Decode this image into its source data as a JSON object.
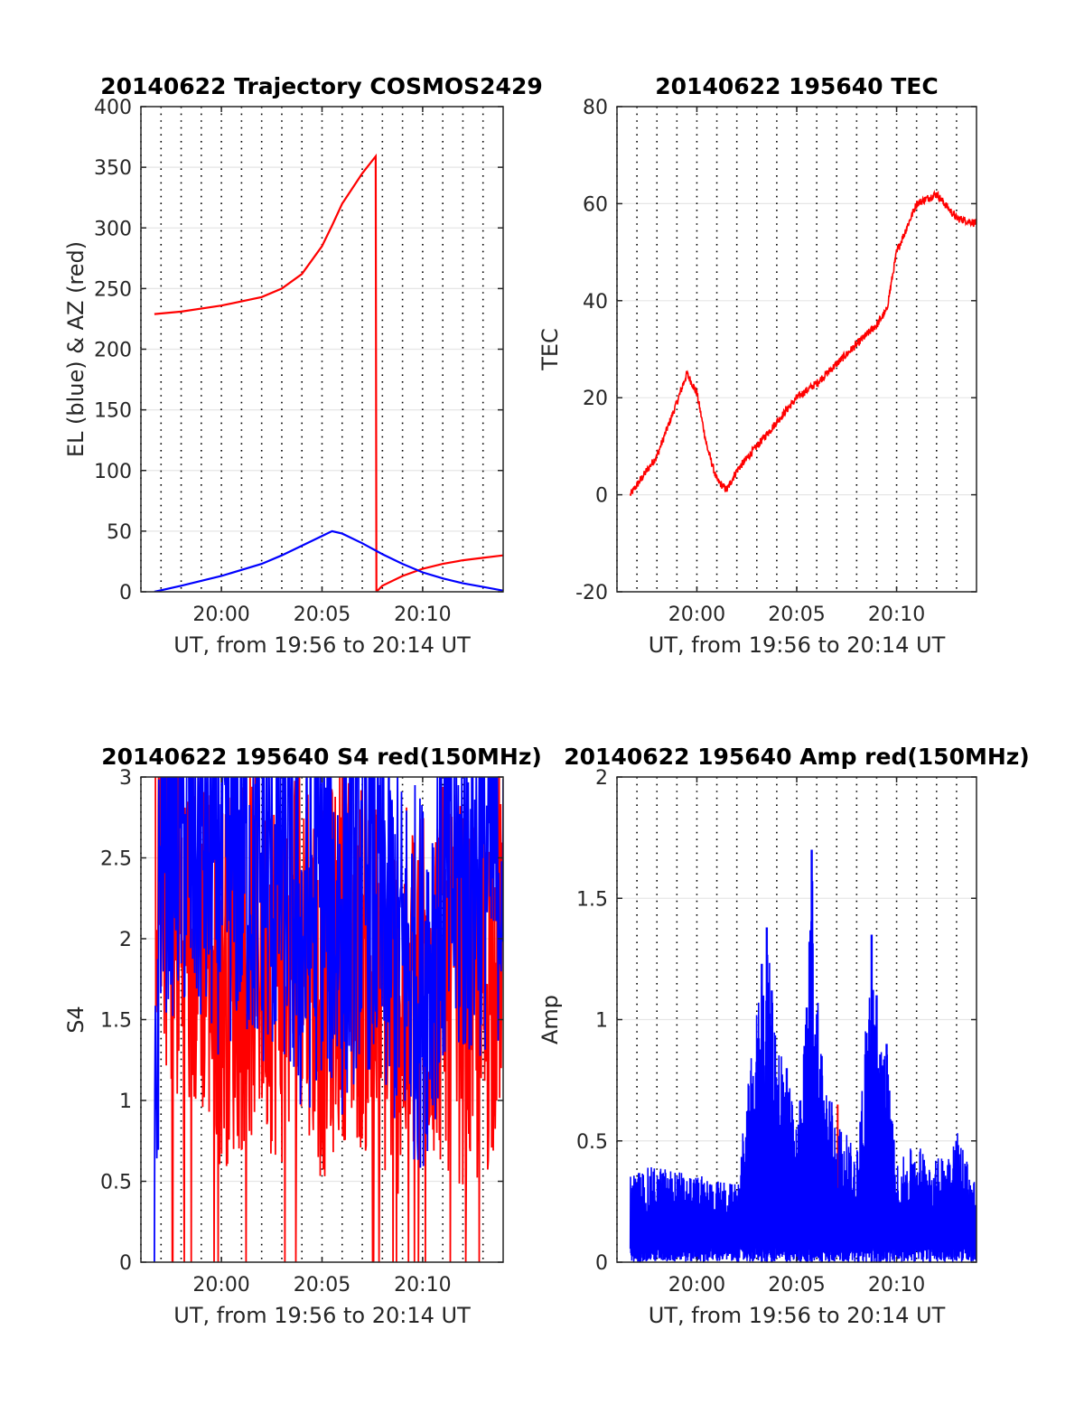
{
  "chart_data": [
    {
      "type": "line",
      "title": "20140622 Trajectory COSMOS2429",
      "xlabel": "UT, from 19:56 to 20:14 UT",
      "ylabel": "EL (blue) & AZ (red)",
      "x_unit": "minutes",
      "xlim": [
        "19:56",
        "20:14"
      ],
      "ylim": [
        0,
        400
      ],
      "yticks": [
        0,
        50,
        100,
        150,
        200,
        250,
        300,
        350,
        400
      ],
      "xticks": [
        "20:00",
        "20:05",
        "20:10"
      ],
      "grid": "x dotted every minute, y solid",
      "series": [
        {
          "color": "#ff0000",
          "x": [
            "19:56:40",
            "19:58",
            "20:00",
            "20:02",
            "20:03",
            "20:04",
            "20:05",
            "20:05:30",
            "20:06",
            "20:07",
            "20:07:40",
            "20:07:42",
            "20:08",
            "20:09",
            "20:10",
            "20:11",
            "20:12",
            "20:13",
            "20:14"
          ],
          "y": [
            229,
            231,
            236,
            243,
            250,
            262,
            285,
            302,
            320,
            345,
            359,
            0,
            5,
            13,
            19,
            23,
            26,
            28,
            30
          ]
        },
        {
          "color": "#0000ff",
          "x": [
            "19:56:40",
            "19:58",
            "20:00",
            "20:02",
            "20:03",
            "20:04",
            "20:05",
            "20:05:30",
            "20:06",
            "20:07",
            "20:08",
            "20:09",
            "20:10",
            "20:11",
            "20:12",
            "20:13",
            "20:14"
          ],
          "y": [
            0,
            5,
            13,
            23,
            30,
            38,
            46,
            50,
            48,
            40,
            31,
            23,
            16,
            11,
            7,
            4,
            1
          ]
        }
      ]
    },
    {
      "type": "line",
      "title": "20140622 195640 TEC",
      "xlabel": "UT, from 19:56 to 20:14 UT",
      "ylabel": "TEC",
      "x_unit": "minutes",
      "xlim": [
        "19:56",
        "20:14"
      ],
      "ylim": [
        -20,
        80
      ],
      "yticks": [
        -20,
        0,
        20,
        40,
        60,
        80
      ],
      "xticks": [
        "20:00",
        "20:05",
        "20:10"
      ],
      "grid": "x dotted every minute, y solid",
      "series": [
        {
          "color": "#ff0000",
          "x": [
            "19:56:40",
            "19:57",
            "19:58",
            "19:59",
            "19:59:30",
            "20:00",
            "20:00:30",
            "20:01",
            "20:01:30",
            "20:02",
            "20:03",
            "20:04",
            "20:05",
            "20:06",
            "20:07",
            "20:08",
            "20:09",
            "20:09:30",
            "20:10",
            "20:11",
            "20:12",
            "20:13",
            "20:14"
          ],
          "y": [
            0,
            2,
            8,
            19,
            25,
            21,
            10,
            3,
            1,
            5,
            10,
            15,
            20,
            23,
            27,
            31,
            35,
            38,
            50,
            60,
            62,
            57,
            56
          ]
        }
      ]
    },
    {
      "type": "line",
      "title": "20140622 195640 S4 red(150MHz)",
      "xlabel": "UT, from 19:56 to 20:14 UT",
      "ylabel": "S4",
      "x_unit": "minutes",
      "xlim": [
        "19:56",
        "20:14"
      ],
      "ylim": [
        0,
        3
      ],
      "yticks": [
        0,
        0.5,
        1,
        1.5,
        2,
        2.5,
        3
      ],
      "xticks": [
        "20:00",
        "20:05",
        "20:10"
      ],
      "grid": "x dotted every minute, y solid",
      "series": [
        {
          "color": "#ff0000",
          "x": [
            "19:56:40",
            "19:57",
            "19:58",
            "19:59",
            "20:00",
            "20:01",
            "20:02",
            "20:03",
            "20:04",
            "20:05",
            "20:06",
            "20:07",
            "20:08",
            "20:09",
            "20:10",
            "20:11",
            "20:12",
            "20:13",
            "20:14"
          ],
          "y": [
            2.3,
            2.1,
            1.6,
            1.7,
            1.4,
            1.5,
            1.6,
            1.4,
            1.8,
            1.3,
            1.6,
            1.5,
            1.3,
            1.2,
            1.5,
            1.4,
            1.3,
            1.2,
            1.8
          ]
        },
        {
          "color": "#0000ff",
          "x": [
            "19:56:40",
            "19:57",
            "19:58",
            "19:59",
            "20:00",
            "20:01",
            "20:02",
            "20:03",
            "20:04",
            "20:05",
            "20:06",
            "20:07",
            "20:08",
            "20:09",
            "20:10",
            "20:11",
            "20:12",
            "20:13",
            "20:14"
          ],
          "y": [
            0,
            2.4,
            2.3,
            2.2,
            2.1,
            2.2,
            2.0,
            2.1,
            1.6,
            2.0,
            1.7,
            2.1,
            1.8,
            1.5,
            1.4,
            1.9,
            2.0,
            2.1,
            2.2
          ]
        }
      ]
    },
    {
      "type": "line",
      "title": "20140622 195640 Amp red(150MHz)",
      "xlabel": "UT, from 19:56 to 20:14 UT",
      "ylabel": "Amp",
      "x_unit": "minutes",
      "xlim": [
        "19:56",
        "20:14"
      ],
      "ylim": [
        0,
        2
      ],
      "yticks": [
        0,
        0.5,
        1,
        1.5,
        2
      ],
      "xticks": [
        "20:00",
        "20:05",
        "20:10"
      ],
      "grid": "x dotted every minute, y solid",
      "series": [
        {
          "color": "#ff0000",
          "x": [
            "20:07:03",
            "20:07:40",
            "20:09:30"
          ],
          "y": [
            0.65,
            0.4,
            0.3
          ]
        },
        {
          "color": "#0000ff",
          "x": [
            "19:56:40",
            "19:58",
            "20:00",
            "20:02",
            "20:03:15",
            "20:03:30",
            "20:03:45",
            "20:04:30",
            "20:05:00",
            "20:05:30",
            "20:05:45",
            "20:06:15",
            "20:07:00",
            "20:08:00",
            "20:08:45",
            "20:09:00",
            "20:09:30",
            "20:10",
            "20:11",
            "20:12",
            "20:13",
            "20:14"
          ],
          "y": [
            0.37,
            0.4,
            0.36,
            0.32,
            1.23,
            1.38,
            1.12,
            0.8,
            0.55,
            1.05,
            1.7,
            0.85,
            0.6,
            0.45,
            1.35,
            1.1,
            0.9,
            0.4,
            0.5,
            0.42,
            0.56,
            0.33
          ]
        }
      ]
    }
  ]
}
